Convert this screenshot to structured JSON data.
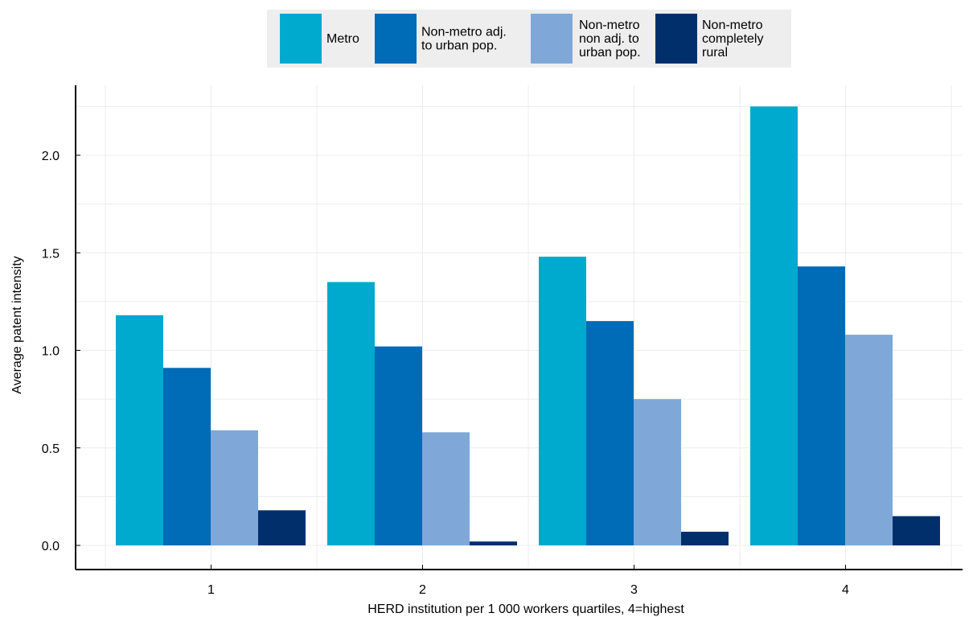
{
  "chart_data": {
    "type": "bar",
    "categories": [
      "1",
      "2",
      "3",
      "4"
    ],
    "series": [
      {
        "name": "Metro",
        "values": [
          1.18,
          1.35,
          1.48,
          2.25
        ],
        "color": "#00a9ce",
        "label_lines": [
          "Metro"
        ]
      },
      {
        "name": "Non-metro adj. to urban pop.",
        "values": [
          0.91,
          1.02,
          1.15,
          1.43
        ],
        "color": "#006bb6",
        "label_lines": [
          "Non-metro adj.",
          "to urban pop."
        ]
      },
      {
        "name": "Non-metro non adj. to urban pop.",
        "values": [
          0.59,
          0.58,
          0.75,
          1.08
        ],
        "color": "#7fa8d9",
        "label_lines": [
          "Non-metro",
          "non adj. to",
          "urban pop."
        ]
      },
      {
        "name": "Non-metro completely rural",
        "values": [
          0.18,
          0.02,
          0.07,
          0.15
        ],
        "color": "#002f6c",
        "label_lines": [
          "Non-metro",
          "completely",
          "rural"
        ]
      }
    ],
    "xlabel": "HERD institution per 1 000 workers quartiles, 4=highest",
    "ylabel": "Average patent intensity",
    "ylim": [
      -0.12,
      2.35
    ],
    "yticks": [
      "0.0",
      "0.5",
      "1.0",
      "1.5",
      "2.0"
    ],
    "grid": true,
    "legend_position": "top-center"
  }
}
